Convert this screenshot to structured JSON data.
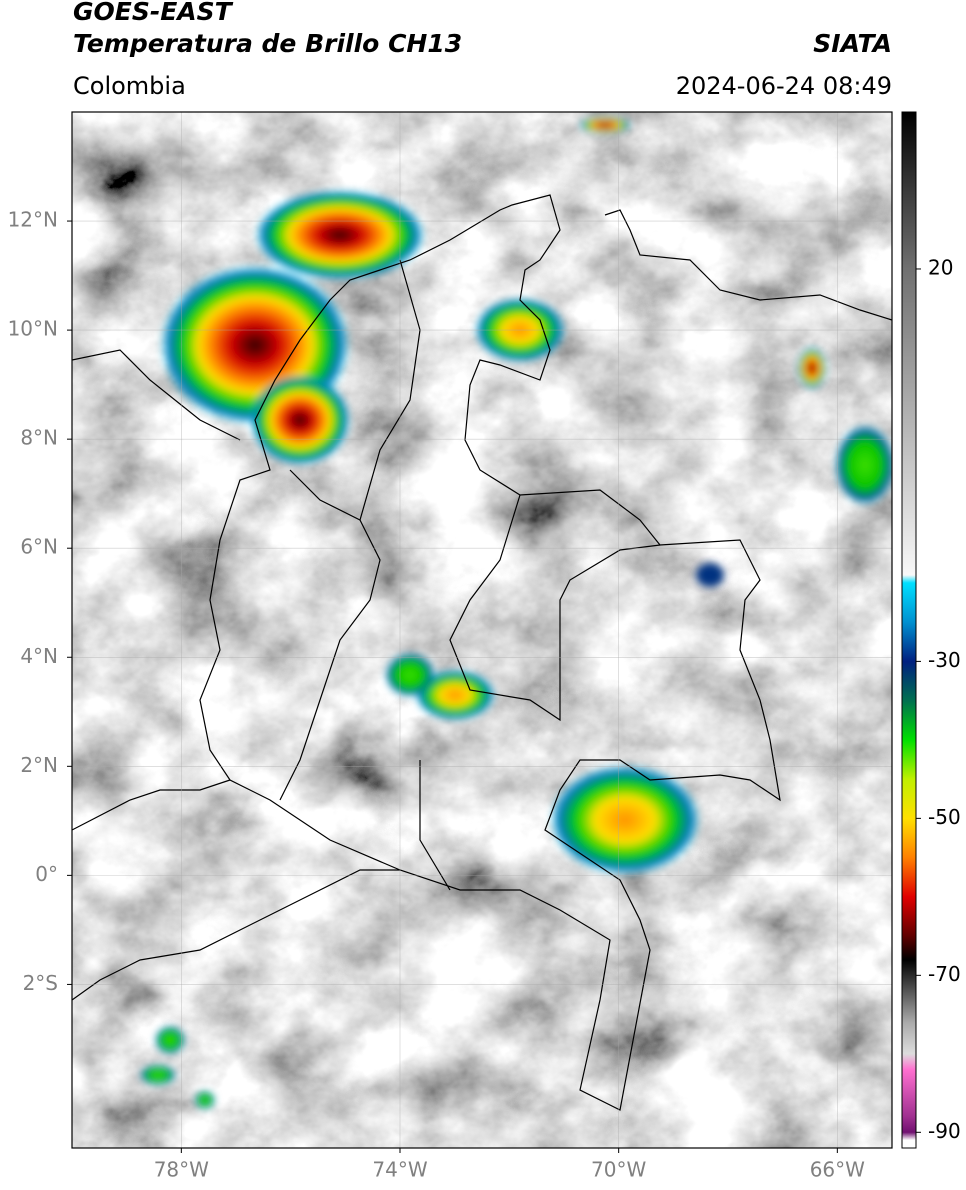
{
  "header": {
    "title": "GOES-EAST",
    "subtitle": "Temperatura de Brillo CH13",
    "source": "SIATA",
    "region": "Colombia",
    "datetime": "2024-06-24 08:49"
  },
  "map": {
    "xlim": [
      -80,
      -65
    ],
    "ylim": [
      -5,
      14
    ],
    "xticks": [
      {
        "value": -78,
        "label": "78°W"
      },
      {
        "value": -74,
        "label": "74°W"
      },
      {
        "value": -70,
        "label": "70°W"
      },
      {
        "value": -66,
        "label": "66°W"
      }
    ],
    "yticks": [
      {
        "value": 12,
        "label": "12°N"
      },
      {
        "value": 10,
        "label": "10°N"
      },
      {
        "value": 8,
        "label": "8°N"
      },
      {
        "value": 6,
        "label": "6°N"
      },
      {
        "value": 4,
        "label": "4°N"
      },
      {
        "value": 2,
        "label": "2°N"
      },
      {
        "value": 0,
        "label": "0°"
      },
      {
        "value": -2,
        "label": "2°S"
      }
    ],
    "grid": true
  },
  "colorbar": {
    "lim": [
      -92,
      40
    ],
    "ticks": [
      20,
      -30,
      -50,
      -70,
      -90
    ],
    "stops": [
      {
        "value": 40,
        "color": "#000000"
      },
      {
        "value": 30,
        "color": "#3a3a3a"
      },
      {
        "value": 20,
        "color": "#707070"
      },
      {
        "value": -19,
        "color": "#f8f8f8"
      },
      {
        "value": -20,
        "color": "#00e0ff"
      },
      {
        "value": -25,
        "color": "#0090d0"
      },
      {
        "value": -30,
        "color": "#002080"
      },
      {
        "value": -35,
        "color": "#007050"
      },
      {
        "value": -40,
        "color": "#00e000"
      },
      {
        "value": -45,
        "color": "#c0f000"
      },
      {
        "value": -50,
        "color": "#ffe000"
      },
      {
        "value": -55,
        "color": "#ff8000"
      },
      {
        "value": -60,
        "color": "#e00000"
      },
      {
        "value": -65,
        "color": "#600000"
      },
      {
        "value": -68,
        "color": "#000000"
      },
      {
        "value": -72,
        "color": "#555555"
      },
      {
        "value": -76,
        "color": "#aaaaaa"
      },
      {
        "value": -80,
        "color": "#dddddd"
      },
      {
        "value": -82,
        "color": "#ff70d0"
      },
      {
        "value": -88,
        "color": "#a03090"
      },
      {
        "value": -90,
        "color": "#701070"
      },
      {
        "value": -91,
        "color": "#ffffff"
      },
      {
        "value": -92,
        "color": "#ffffff"
      }
    ]
  }
}
